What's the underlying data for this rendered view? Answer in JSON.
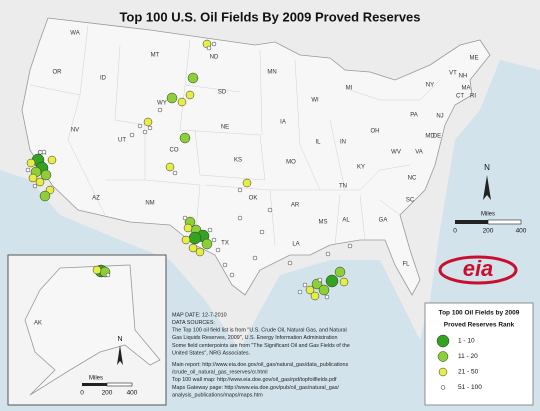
{
  "title": "Top 100 U.S. Oil Fields By 2009 Proved Reserves",
  "states": [
    "WA",
    "OR",
    "ID",
    "MT",
    "ND",
    "SD",
    "WY",
    "NE",
    "NV",
    "UT",
    "CO",
    "CA",
    "AZ",
    "NM",
    "KS",
    "OK",
    "TX",
    "MN",
    "IA",
    "MO",
    "AR",
    "LA",
    "WI",
    "IL",
    "MS",
    "MI",
    "IN",
    "KY",
    "TN",
    "AL",
    "GA",
    "FL",
    "OH",
    "WV",
    "VA",
    "NC",
    "SC",
    "PA",
    "NY",
    "VT",
    "NH",
    "ME",
    "MA",
    "CT",
    "RI",
    "NJ",
    "DE",
    "MD"
  ],
  "alaska_label": "AK",
  "north_label": "N",
  "scale": {
    "unit": "Miles",
    "ticks": [
      0,
      200,
      400
    ]
  },
  "alaska_scale": {
    "unit": "Miles",
    "ticks": [
      0,
      200,
      400
    ]
  },
  "logo": "eia",
  "legend": {
    "title": "Top 100 Oil Fields by 2009",
    "subtitle": "Proved Reserves Rank",
    "items": [
      "1 - 10",
      "11 - 20",
      "21 - 50",
      "51 - 100"
    ]
  },
  "notes": [
    "MAP DATE: 12-7-2010",
    "DATA SOURCES:",
    "The Top 100 oil field list is from \"U.S. Crude Oil, Natural Gas, and Natural",
    "Gas Liquids Reserves, 2009\", U.S. Energy Information Administration",
    "Some field centerpoints are from \"The Significant Oil and Gas Fields of the",
    "United States\", NRG Associates.",
    "Main report: http://www.eia.doe.gov/oil_gas/natural_gas/data_publications",
    "/crude_oil_natural_gas_reserves/cr.html",
    "Top 100 wall map: http://www.eia.doe.gov/oil_gas/rpd/topfoilfields.pdf",
    "Maps Gateway page: http://www.eia.doe.gov/pub/oil_gas/natural_gas/",
    "analysis_publications/maps/maps.htm"
  ]
}
